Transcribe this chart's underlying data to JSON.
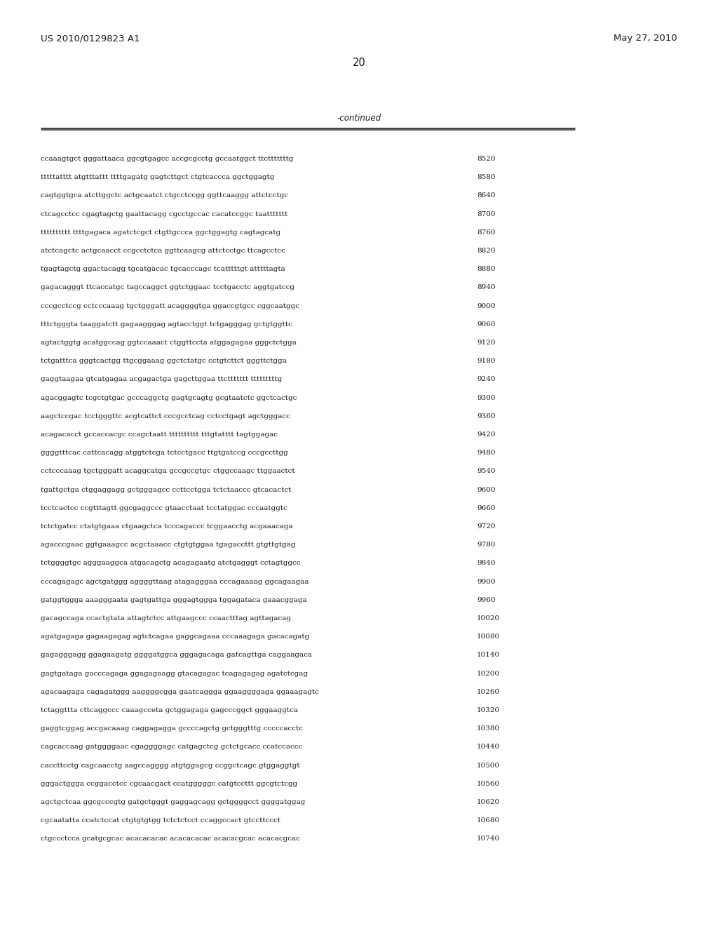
{
  "header_left": "US 2010/0129823 A1",
  "header_right": "May 27, 2010",
  "page_number": "20",
  "continued_label": "-continued",
  "background_color": "#ffffff",
  "text_color": "#1a1a1a",
  "line_color": "#333333",
  "header_fontsize": 9.5,
  "page_num_fontsize": 10.5,
  "continued_fontsize": 8.5,
  "sequence_fontsize": 7.5,
  "sequences": [
    [
      "ccaaagtgct gggattaaca ggcgtgagcc accgcgcctg gccaatggct ttctttttttg",
      "8520"
    ],
    [
      "tttttatttt atgtttattt ttttgagatg gagtcttgct ctgtcaccca ggctggagtg",
      "8580"
    ],
    [
      "cagtggtgca atcttggctc actgcaatct ctgcctccgg ggttcaaggg attctcctgc",
      "8640"
    ],
    [
      "ctcagcctcc cgagtagctg gaattacagg cgcctgccac cacatccggc taattttttt",
      "8700"
    ],
    [
      "tttttttttt ttttgagaca agatctcgct ctgttgccca ggctggagtg cagtagcatg",
      "8760"
    ],
    [
      "atctcagctc actgcaacct ccgcctctca ggttcaagcg attctcctgc ttcagcctcc",
      "8820"
    ],
    [
      "tgagtagctg ggactacagg tgcatgacac tgcacccagc tcatttttgt atttttagta",
      "8880"
    ],
    [
      "gagacagggt ttcaccatgc tagccaggct ggtctggaac tcctgacctc aggtgatccg",
      "8940"
    ],
    [
      "cccgcctccg cctcccaaag tgctgggatt acaggggtga ggaccgtgcc cggcaatggc",
      "9000"
    ],
    [
      "tttctgggta taaggatctt gagaagggag agtacctggt tctgagggag gctgtggttc",
      "9060"
    ],
    [
      "agtactggtg acatggccag ggtccaaact ctggttccta atggagagaa gggctctgga",
      "9120"
    ],
    [
      "tctgatttca gggtcactgg ttgcggaaag ggctctatgc cctgtcttct gggttctgga",
      "9180"
    ],
    [
      "gaggtaagaa gtcatgagaa acgagactga gagcttggaa ttcttttttt tttttttttg",
      "9240"
    ],
    [
      "agacggagtc tcgctgtgac gcccaggctg gagtgcagtg gcgtaatctc ggctcactgc",
      "9300"
    ],
    [
      "aagctccgac tcctgggttc acgtcattct cccgcctcag cctcctgagt agctgggacc",
      "9360"
    ],
    [
      "acagacacct gccaccacgc ccagctaatt tttttttttt tttgtatttt tagtggagac",
      "9420"
    ],
    [
      "ggggtttcac cattcacagg atggtctcga tctcctgacc ttgtgatccg cccgccttgg",
      "9480"
    ],
    [
      "cctcccaaag tgctgggatt acaggcatga gccgccgtgc ctggccaagc ttggaactct",
      "9540"
    ],
    [
      "tgattgctga ctggaggagg gctgggagcc ccttcctgga tctctaaccc gtcacactct",
      "9600"
    ],
    [
      "tcctcactcc ccgtttagtt ggcgaggccc gtaacctaat tcctatggac cccaatggtc",
      "9660"
    ],
    [
      "tctctgatcc ctatgtgaaa ctgaagctca tcccagaccc tcggaacctg acgaaacaga",
      "9720"
    ],
    [
      "agacccgaac ggtgaaagcc acgctaaacc ctgtgtggaa tgagaccttt gtgttgtgag",
      "9780"
    ],
    [
      "tctggggtgc agggaaggca atgacagctg acagagaatg atctgagggt cctagtggcc",
      "9840"
    ],
    [
      "cccagagagc agctgatggg aggggttaag atagagggaa cccagaaaag ggcagaagaa",
      "9900"
    ],
    [
      "gatggtggga aaagggaata gagtgattga gggagtggga tggagataca gaaacggaga",
      "9960"
    ],
    [
      "gacagccaga ccactgtata attagtctcc attgaagccc ccaactttag agttagacag",
      "10020"
    ],
    [
      "agatgagaga gagaagagag agtctcagaa gaggcagaaa cccaaagaga gacacagatg",
      "10080"
    ],
    [
      "gagagggagg ggagaagatg ggggatggca gggagacaga gatcagttga caggaagaca",
      "10140"
    ],
    [
      "gagtgataga gacccagaga ggagagaagg gtacagagac tcagagagag agatctcgag",
      "10200"
    ],
    [
      "agacaagaga cagagatggg aaggggcgga gaatcaggga ggaaggggaga ggaaagagtc",
      "10260"
    ],
    [
      "tctaggttta cttcaggccc caaagcceta gctggagaga gagcccggct gggaaggtca",
      "10320"
    ],
    [
      "gaggtcggag accgacaaag caggagagga gccccagctg gctgggtttg cccccacctc",
      "10380"
    ],
    [
      "cagcaccaag gatggggaac cgaggggagc catgagctcg gctctgcacc ccatccaccc",
      "10440"
    ],
    [
      "caccttcctg cagcaacctg aagccagggg atgtggagcg ccggctcagc gtggaggtgt",
      "10500"
    ],
    [
      "gggactggga ccggacctcc cgcaacgact ccatgggggc catgtccttt ggcgtctcgg",
      "10560"
    ],
    [
      "agctgctcaa ggcgcccgtg gatgctgggt gaggagcagg gctggggcct ggggatggag",
      "10620"
    ],
    [
      "cgcaatatta ccatctccat ctgtgtgtgg tctctctcct ccaggccact gtccttccct",
      "10680"
    ],
    [
      "ctgccctcca gcatgcgcac acacacacac acacacacac acacacgcac acacacgcac",
      "10740"
    ]
  ]
}
